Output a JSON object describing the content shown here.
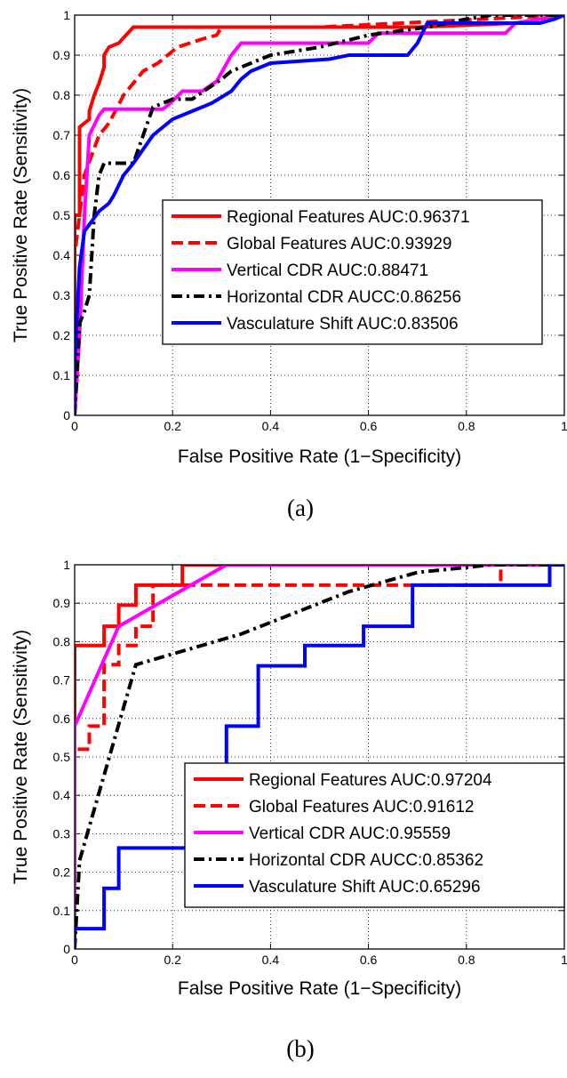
{
  "chart_data": [
    {
      "type": "line",
      "caption": "(a)",
      "xlabel": "False Positive Rate (1−Specificity)",
      "ylabel": "True Positive Rate (Sensitivity)",
      "xlim": [
        0,
        1
      ],
      "ylim": [
        0,
        1
      ],
      "xticks": [
        "0",
        "0.2",
        "0.4",
        "0.6",
        "0.8",
        "1"
      ],
      "yticks": [
        "0",
        "0.1",
        "0.2",
        "0.3",
        "0.4",
        "0.5",
        "0.6",
        "0.7",
        "0.8",
        "0.9",
        "1"
      ],
      "grid": true,
      "legend_position": "center-right",
      "series": [
        {
          "name": "Regional Features AUC:0.96371",
          "color": "#ff0000",
          "style": "solid",
          "x": [
            0,
            0,
            0.01,
            0.01,
            0.03,
            0.03,
            0.04,
            0.05,
            0.06,
            0.06,
            0.07,
            0.09,
            0.12,
            0.4,
            0.7,
            0.9,
            1.0
          ],
          "y": [
            0,
            0.5,
            0.5,
            0.72,
            0.74,
            0.76,
            0.8,
            0.83,
            0.87,
            0.9,
            0.92,
            0.93,
            0.97,
            0.97,
            0.97,
            0.98,
            1.0
          ]
        },
        {
          "name": "Global Features AUC:0.93929",
          "color": "#ff0000",
          "style": "dashed",
          "x": [
            0,
            0,
            0.02,
            0.05,
            0.07,
            0.1,
            0.14,
            0.17,
            0.21,
            0.26,
            0.29,
            0.3,
            0.5,
            1.0
          ],
          "y": [
            0,
            0.4,
            0.6,
            0.7,
            0.73,
            0.8,
            0.86,
            0.88,
            0.92,
            0.94,
            0.95,
            0.97,
            0.97,
            1.0
          ]
        },
        {
          "name": "Vertical CDR AUC:0.88471",
          "color": "#ff00ff",
          "style": "solid",
          "x": [
            0,
            0.01,
            0.02,
            0.03,
            0.05,
            0.06,
            0.18,
            0.2,
            0.22,
            0.26,
            0.29,
            0.32,
            0.34,
            0.6,
            0.62,
            0.7,
            0.88,
            0.9,
            1.0
          ],
          "y": [
            0,
            0.2,
            0.5,
            0.7,
            0.75,
            0.765,
            0.765,
            0.785,
            0.81,
            0.81,
            0.835,
            0.9,
            0.93,
            0.93,
            0.955,
            0.955,
            0.955,
            0.98,
            1.0
          ]
        },
        {
          "name": "Horizontal CDR AUCC:0.86256",
          "color": "#000000",
          "style": "dashdot",
          "x": [
            0,
            0.01,
            0.02,
            0.03,
            0.04,
            0.05,
            0.06,
            0.07,
            0.12,
            0.14,
            0.16,
            0.2,
            0.22,
            0.24,
            0.3,
            0.32,
            0.36,
            0.4,
            0.5,
            0.6,
            0.72,
            0.8,
            0.85,
            0.9,
            1.0
          ],
          "y": [
            0,
            0.23,
            0.26,
            0.3,
            0.5,
            0.6,
            0.63,
            0.63,
            0.63,
            0.7,
            0.77,
            0.79,
            0.79,
            0.79,
            0.84,
            0.86,
            0.88,
            0.9,
            0.92,
            0.95,
            0.97,
            0.99,
            1.0,
            1.0,
            1.0
          ]
        },
        {
          "name": "Vasculature Shift AUC:0.83506",
          "color": "#0000ff",
          "style": "solid",
          "x": [
            0,
            0,
            0.01,
            0.02,
            0.05,
            0.06,
            0.07,
            0.08,
            0.1,
            0.12,
            0.16,
            0.18,
            0.2,
            0.24,
            0.28,
            0.32,
            0.34,
            0.36,
            0.4,
            0.52,
            0.56,
            0.64,
            0.68,
            0.7,
            0.72,
            0.78,
            0.85,
            0.95,
            0.98,
            1.0
          ],
          "y": [
            0,
            0.13,
            0.37,
            0.46,
            0.51,
            0.52,
            0.53,
            0.55,
            0.6,
            0.63,
            0.7,
            0.72,
            0.74,
            0.76,
            0.78,
            0.81,
            0.84,
            0.86,
            0.88,
            0.89,
            0.9,
            0.9,
            0.9,
            0.93,
            0.98,
            0.98,
            0.98,
            0.98,
            0.99,
            1.0
          ]
        }
      ]
    },
    {
      "type": "line",
      "caption": "(b)",
      "xlabel": "False Positive Rate (1−Specificity)",
      "ylabel": "True Positive Rate (Sensitivity)",
      "xlim": [
        0,
        1
      ],
      "ylim": [
        0,
        1
      ],
      "xticks": [
        "0",
        "0.2",
        "0.4",
        "0.6",
        "0.8",
        "1"
      ],
      "yticks": [
        "0",
        "0.1",
        "0.2",
        "0.3",
        "0.4",
        "0.5",
        "0.6",
        "0.7",
        "0.8",
        "0.9",
        "1"
      ],
      "grid": true,
      "legend_position": "lower-right",
      "series": [
        {
          "name": "Regional Features AUC:0.97204",
          "color": "#ff0000",
          "style": "solid",
          "x": [
            0,
            0,
            0.06,
            0.06,
            0.09,
            0.09,
            0.125,
            0.125,
            0.22,
            0.22,
            1.0
          ],
          "y": [
            0,
            0.79,
            0.79,
            0.84,
            0.84,
            0.895,
            0.895,
            0.947,
            0.947,
            1.0,
            1.0
          ]
        },
        {
          "name": "Global Features AUC:0.91612",
          "color": "#ff0000",
          "style": "dashed",
          "x": [
            0,
            0,
            0.03,
            0.03,
            0.06,
            0.06,
            0.09,
            0.09,
            0.125,
            0.125,
            0.16,
            0.16,
            0.87,
            0.87,
            1.0
          ],
          "y": [
            0,
            0.52,
            0.52,
            0.58,
            0.58,
            0.74,
            0.74,
            0.79,
            0.79,
            0.84,
            0.84,
            0.947,
            0.947,
            1.0,
            1.0
          ]
        },
        {
          "name": "Vertical CDR AUC:0.95559",
          "color": "#ff00ff",
          "style": "solid",
          "x": [
            0,
            0,
            0.09,
            0.31,
            1.0
          ],
          "y": [
            0,
            0.58,
            0.84,
            1.0,
            1.0
          ]
        },
        {
          "name": "Horizontal CDR AUCC:0.85362",
          "color": "#000000",
          "style": "dashdot",
          "x": [
            0,
            0.01,
            0.125,
            0.34,
            0.56,
            0.7,
            0.85,
            1.0
          ],
          "y": [
            0,
            0.23,
            0.74,
            0.82,
            0.93,
            0.98,
            1.0,
            1.0
          ]
        },
        {
          "name": "Vasculature Shift AUC:0.65296",
          "color": "#0000ff",
          "style": "solid",
          "x": [
            0,
            0,
            0.06,
            0.06,
            0.09,
            0.09,
            0.28,
            0.28,
            0.31,
            0.31,
            0.375,
            0.375,
            0.47,
            0.47,
            0.59,
            0.59,
            0.69,
            0.69,
            0.97,
            0.97,
            1.0
          ],
          "y": [
            0,
            0.053,
            0.053,
            0.158,
            0.158,
            0.263,
            0.263,
            0.42,
            0.42,
            0.58,
            0.58,
            0.737,
            0.737,
            0.79,
            0.79,
            0.84,
            0.84,
            0.947,
            0.947,
            1.0,
            1.0
          ]
        }
      ]
    }
  ]
}
